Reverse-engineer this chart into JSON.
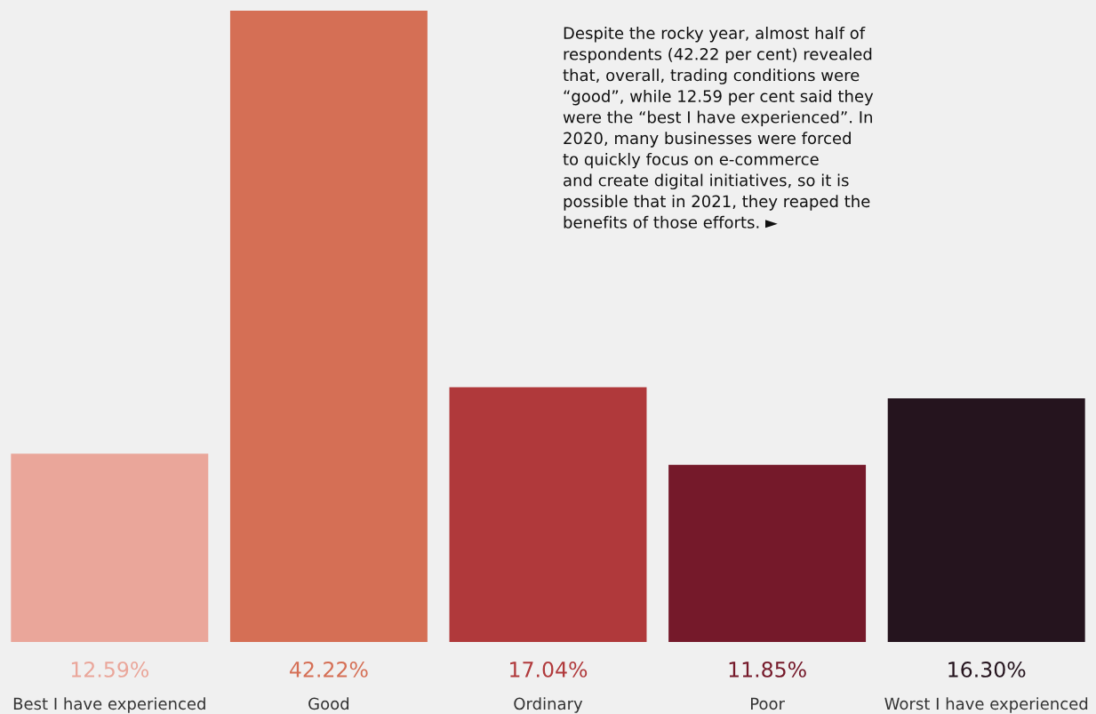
{
  "chart_data": {
    "type": "bar",
    "categories": [
      "Best I have experienced",
      "Good",
      "Ordinary",
      "Poor",
      "Worst I have experienced"
    ],
    "values": [
      12.59,
      42.22,
      17.04,
      11.85,
      16.3
    ],
    "value_labels": [
      "12.59%",
      "42.22%",
      "17.04%",
      "11.85%",
      "16.30%"
    ],
    "colors": [
      "#eaa69a",
      "#d56f55",
      "#b0393b",
      "#75192a",
      "#25141e"
    ],
    "annotations": [
      "Despite the rocky year, almost half of\nrespondents (42.22 per cent) revealed\nthat, overall, trading conditions were\n“good”, while 12.59 per cent said they\nwere the “best I have experienced”. In\n2020, many businesses were forced\nto quickly focus on e-commerce\nand create digital initiatives, so it is\npossible that in 2021, they reaped the\nbenefits of those efforts. ►"
    ],
    "orientation": "vertical"
  }
}
